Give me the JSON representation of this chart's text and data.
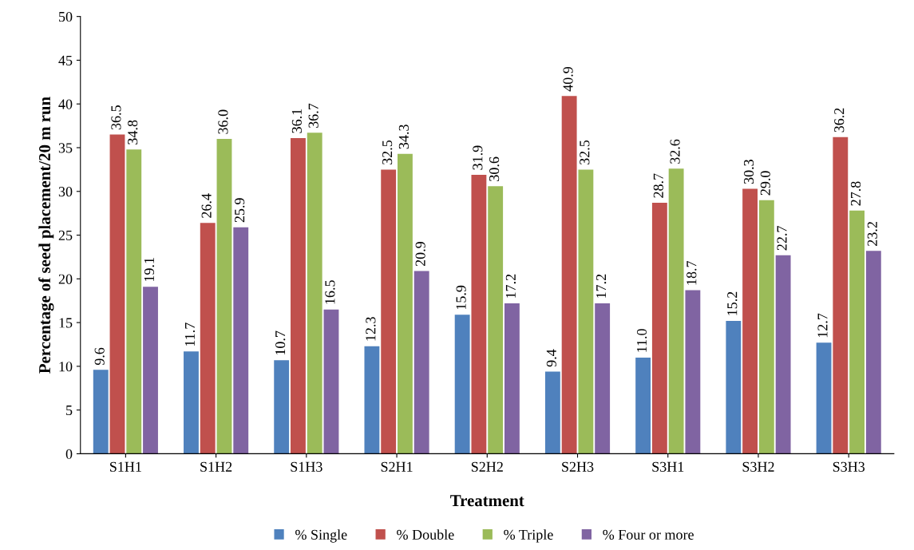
{
  "chart_data": {
    "type": "bar",
    "xlabel": "Treatment",
    "ylabel": "Percentage of seed placement/20 m run",
    "categories": [
      "S1H1",
      "S1H2",
      "S1H3",
      "S2H1",
      "S2H2",
      "S2H3",
      "S3H1",
      "S3H2",
      "S3H3"
    ],
    "series": [
      {
        "name": "% Single",
        "color": "#4f81bd",
        "values": [
          9.6,
          11.7,
          10.7,
          12.3,
          15.9,
          9.4,
          11.0,
          15.2,
          12.7
        ],
        "value_labels": [
          "9.6",
          "11.7",
          "10.7",
          "12.3",
          "15.9",
          "9.4",
          "11.0",
          "15.2",
          "12.7"
        ]
      },
      {
        "name": "% Double",
        "color": "#c0504d",
        "values": [
          36.5,
          26.4,
          36.1,
          32.5,
          31.9,
          40.9,
          28.7,
          30.3,
          36.2
        ],
        "value_labels": [
          "36.5",
          "26.4",
          "36.1",
          "32.5",
          "31.9",
          "40.9",
          "28.7",
          "30.3",
          "36.2"
        ]
      },
      {
        "name": "% Triple",
        "color": "#9bbb59",
        "values": [
          34.8,
          36.0,
          36.7,
          34.3,
          30.6,
          32.5,
          32.6,
          29.0,
          27.8
        ],
        "value_labels": [
          "34.8",
          "36.0",
          "36.7",
          "34.3",
          "30.6",
          "32.5",
          "32.6",
          "29.0",
          "27.8"
        ]
      },
      {
        "name": "% Four or more",
        "color": "#8064a2",
        "values": [
          19.1,
          25.9,
          16.5,
          20.9,
          17.2,
          17.2,
          18.7,
          22.7,
          23.2
        ],
        "value_labels": [
          "19.1",
          "25.9",
          "16.5",
          "20.9",
          "17.2",
          "17.2",
          "18.7",
          "22.7",
          "23.2"
        ]
      }
    ],
    "ylim": [
      0,
      50
    ],
    "yticks": [
      0,
      5,
      10,
      15,
      20,
      25,
      30,
      35,
      40,
      45,
      50
    ],
    "grid": false,
    "legend": "bottom"
  }
}
